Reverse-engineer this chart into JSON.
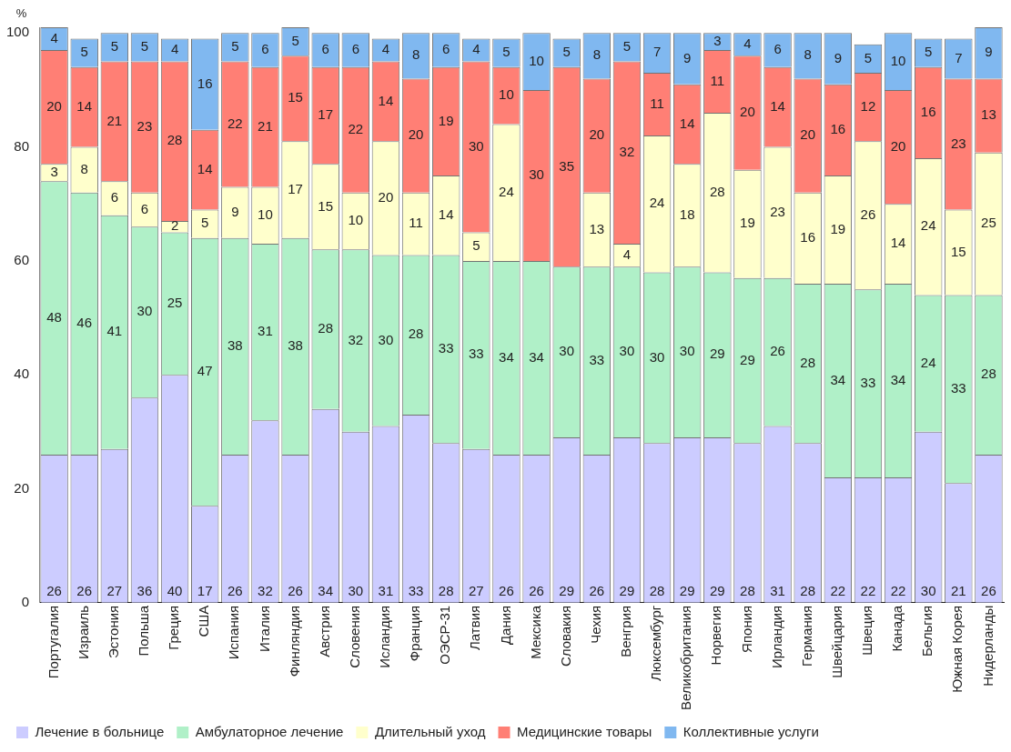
{
  "chart_data": {
    "type": "bar",
    "stacked": true,
    "ylabel": "%",
    "ylim": [
      0,
      101
    ],
    "yticks": [
      0,
      20,
      40,
      60,
      80,
      100
    ],
    "grid": false,
    "legend": "bottom",
    "data_labels": true,
    "categories": [
      "Португалия",
      "Израиль",
      "Эстония",
      "Польша",
      "Греция",
      "США",
      "Испания",
      "Италия",
      "Финляндия",
      "Австрия",
      "Словения",
      "Исландия",
      "Франция",
      "ОЭСР-31",
      "Латвия",
      "Дания",
      "Мексика",
      "Словакия",
      "Чехия",
      "Венгрия",
      "Люксембург",
      "Великобритания",
      "Норвегия",
      "Япония",
      "Ирландия",
      "Германия",
      "Швейцария",
      "Швеция",
      "Канада",
      "Бельгия",
      "Южная Корея",
      "Нидерланды"
    ],
    "series": [
      {
        "name": "Лечение в больнице",
        "color": "#ccccff",
        "values": [
          26,
          26,
          27,
          36,
          40,
          17,
          26,
          32,
          26,
          34,
          30,
          31,
          33,
          28,
          27,
          26,
          26,
          29,
          26,
          29,
          28,
          29,
          29,
          28,
          31,
          28,
          22,
          22,
          22,
          30,
          21,
          26
        ]
      },
      {
        "name": "Амбулаторное лечение",
        "color": "#b0f0c8",
        "values": [
          48,
          46,
          41,
          30,
          25,
          47,
          38,
          31,
          38,
          28,
          32,
          30,
          28,
          33,
          33,
          34,
          34,
          30,
          33,
          30,
          30,
          30,
          29,
          29,
          26,
          28,
          34,
          33,
          34,
          24,
          33,
          28
        ]
      },
      {
        "name": "Длительный уход",
        "color": "#ffffcc",
        "values": [
          3,
          8,
          6,
          6,
          2,
          5,
          9,
          10,
          17,
          15,
          10,
          20,
          11,
          14,
          5,
          24,
          null,
          null,
          13,
          4,
          24,
          18,
          28,
          19,
          23,
          16,
          19,
          26,
          14,
          24,
          15,
          25
        ]
      },
      {
        "name": "Медицинские товары",
        "color": "#ff7f75",
        "values": [
          20,
          14,
          21,
          23,
          28,
          14,
          22,
          21,
          15,
          17,
          22,
          14,
          20,
          19,
          30,
          10,
          30,
          35,
          20,
          32,
          11,
          14,
          11,
          20,
          14,
          20,
          16,
          12,
          20,
          16,
          23,
          13
        ]
      },
      {
        "name": "Коллективные услуги",
        "color": "#80b8f0",
        "values": [
          4,
          5,
          5,
          5,
          4,
          16,
          5,
          6,
          5,
          6,
          6,
          4,
          8,
          6,
          4,
          5,
          10,
          5,
          8,
          5,
          7,
          9,
          3,
          4,
          6,
          8,
          9,
          5,
          10,
          5,
          7,
          9
        ]
      }
    ]
  }
}
